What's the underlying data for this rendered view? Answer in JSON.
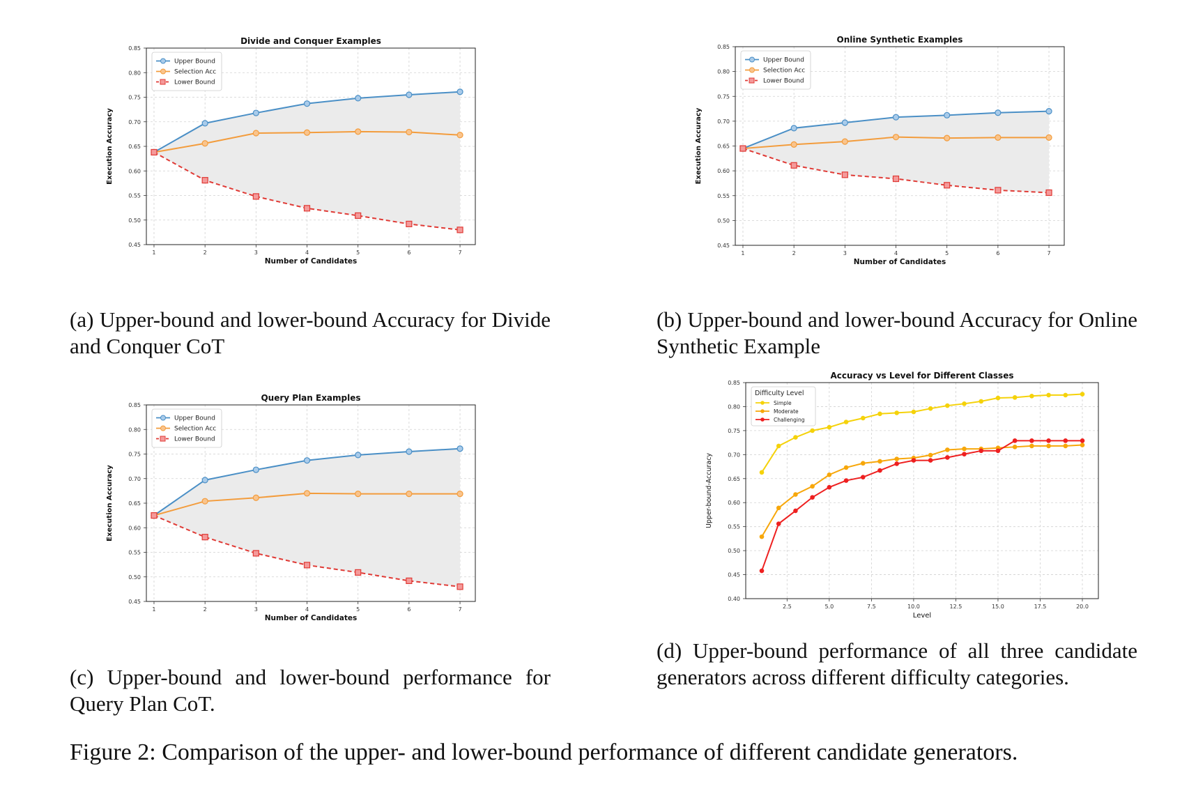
{
  "chart_data": [
    {
      "id": "a",
      "type": "line",
      "title": "Divide and Conquer Examples",
      "xlabel": "Number of Candidates",
      "ylabel": "Execution Accuracy",
      "x": [
        1,
        2,
        3,
        4,
        5,
        6,
        7
      ],
      "xticks": [
        1,
        2,
        3,
        4,
        5,
        6,
        7
      ],
      "xlim": [
        0.85,
        7.3
      ],
      "ylim": [
        0.45,
        0.85
      ],
      "yticks": [
        "0.45",
        "0.50",
        "0.55",
        "0.60",
        "0.65",
        "0.70",
        "0.75",
        "0.80",
        "0.85"
      ],
      "grid": true,
      "shaded_between": [
        "Upper Bound",
        "Lower Bound"
      ],
      "legend_placement": "top-left",
      "series": [
        {
          "name": "Upper Bound",
          "color": "#4a8fc6",
          "marker": "circle",
          "dashed": false,
          "values": [
            0.638,
            0.697,
            0.718,
            0.737,
            0.748,
            0.755,
            0.761
          ]
        },
        {
          "name": "Selection Acc",
          "color": "#f39c3c",
          "marker": "circle",
          "dashed": false,
          "values": [
            0.638,
            0.656,
            0.677,
            0.678,
            0.68,
            0.679,
            0.673
          ]
        },
        {
          "name": "Lower Bound",
          "color": "#e03a35",
          "marker": "square",
          "dashed": true,
          "values": [
            0.638,
            0.581,
            0.548,
            0.524,
            0.509,
            0.492,
            0.48
          ]
        }
      ]
    },
    {
      "id": "b",
      "type": "line",
      "title": "Online Synthetic Examples",
      "xlabel": "Number of Candidates",
      "ylabel": "Execution Accuracy",
      "x": [
        1,
        2,
        3,
        4,
        5,
        6,
        7
      ],
      "xticks": [
        1,
        2,
        3,
        4,
        5,
        6,
        7
      ],
      "xlim": [
        0.85,
        7.3
      ],
      "ylim": [
        0.45,
        0.85
      ],
      "yticks": [
        "0.45",
        "0.50",
        "0.55",
        "0.60",
        "0.65",
        "0.70",
        "0.75",
        "0.80",
        "0.85"
      ],
      "grid": true,
      "shaded_between": [
        "Upper Bound",
        "Lower Bound"
      ],
      "legend_placement": "top-left",
      "series": [
        {
          "name": "Upper Bound",
          "color": "#4a8fc6",
          "marker": "circle",
          "dashed": false,
          "values": [
            0.645,
            0.686,
            0.697,
            0.708,
            0.712,
            0.717,
            0.72
          ]
        },
        {
          "name": "Selection Acc",
          "color": "#f39c3c",
          "marker": "circle",
          "dashed": false,
          "values": [
            0.645,
            0.653,
            0.659,
            0.668,
            0.666,
            0.667,
            0.667
          ]
        },
        {
          "name": "Lower Bound",
          "color": "#e03a35",
          "marker": "square",
          "dashed": true,
          "values": [
            0.645,
            0.611,
            0.592,
            0.584,
            0.571,
            0.561,
            0.556
          ]
        }
      ]
    },
    {
      "id": "c",
      "type": "line",
      "title": "Query Plan Examples",
      "xlabel": "Number of Candidates",
      "ylabel": "Execution Accuracy",
      "x": [
        1,
        2,
        3,
        4,
        5,
        6,
        7
      ],
      "xticks": [
        1,
        2,
        3,
        4,
        5,
        6,
        7
      ],
      "xlim": [
        0.85,
        7.3
      ],
      "ylim": [
        0.45,
        0.85
      ],
      "yticks": [
        "0.45",
        "0.50",
        "0.55",
        "0.60",
        "0.65",
        "0.70",
        "0.75",
        "0.80",
        "0.85"
      ],
      "grid": true,
      "shaded_between": [
        "Upper Bound",
        "Lower Bound"
      ],
      "legend_placement": "top-left",
      "series": [
        {
          "name": "Upper Bound",
          "color": "#4a8fc6",
          "marker": "circle",
          "dashed": false,
          "values": [
            0.625,
            0.697,
            0.718,
            0.737,
            0.748,
            0.755,
            0.761
          ]
        },
        {
          "name": "Selection Acc",
          "color": "#f39c3c",
          "marker": "circle",
          "dashed": false,
          "values": [
            0.625,
            0.654,
            0.661,
            0.67,
            0.669,
            0.669,
            0.669
          ]
        },
        {
          "name": "Lower Bound",
          "color": "#e03a35",
          "marker": "square",
          "dashed": true,
          "values": [
            0.625,
            0.581,
            0.548,
            0.524,
            0.509,
            0.492,
            0.48
          ]
        }
      ]
    },
    {
      "id": "d",
      "type": "line",
      "title": "Accuracy vs Level for Different Classes",
      "xlabel": "Level",
      "ylabel": "Upper-bound-Accuracy",
      "x": [
        1,
        2,
        3,
        4,
        5,
        6,
        7,
        8,
        9,
        10,
        11,
        12,
        13,
        14,
        15,
        16,
        17,
        18,
        19,
        20
      ],
      "xticks": [
        "2.5",
        "5.0",
        "7.5",
        "10.0",
        "12.5",
        "15.0",
        "17.5",
        "20.0"
      ],
      "xlim": [
        0.05,
        20.95
      ],
      "ylim": [
        0.4,
        0.85
      ],
      "yticks": [
        "0.40",
        "0.45",
        "0.50",
        "0.55",
        "0.60",
        "0.65",
        "0.70",
        "0.75",
        "0.80",
        "0.85"
      ],
      "grid": true,
      "legend_title": "Difficulty Level",
      "legend_placement": "top-left",
      "series": [
        {
          "name": "Simple",
          "color": "#f5d20a",
          "marker": "dot",
          "dashed": false,
          "values": [
            0.663,
            0.718,
            0.736,
            0.75,
            0.757,
            0.768,
            0.776,
            0.785,
            0.787,
            0.789,
            0.796,
            0.802,
            0.806,
            0.811,
            0.818,
            0.819,
            0.822,
            0.824,
            0.824,
            0.826
          ]
        },
        {
          "name": "Moderate",
          "color": "#f7a70a",
          "marker": "dot",
          "dashed": false,
          "values": [
            0.529,
            0.589,
            0.617,
            0.634,
            0.658,
            0.673,
            0.682,
            0.686,
            0.691,
            0.693,
            0.699,
            0.71,
            0.712,
            0.712,
            0.714,
            0.716,
            0.718,
            0.718,
            0.718,
            0.72
          ]
        },
        {
          "name": "Challenging",
          "color": "#ee2020",
          "marker": "dot",
          "dashed": false,
          "values": [
            0.458,
            0.556,
            0.583,
            0.611,
            0.632,
            0.646,
            0.653,
            0.667,
            0.681,
            0.688,
            0.688,
            0.694,
            0.701,
            0.708,
            0.708,
            0.729,
            0.729,
            0.729,
            0.729,
            0.729
          ]
        }
      ]
    }
  ],
  "captions": {
    "a": "(a) Upper-bound and lower-bound Accuracy for Divide and Conquer CoT",
    "b": "(b) Upper-bound and lower-bound Accuracy for Online Synthetic Example",
    "c": "(c) Upper-bound and lower-bound performance for Query Plan CoT.",
    "d": "(d) Upper-bound performance of all three candidate generators across different difficulty categories.",
    "figure": "Figure 2: Comparison of the upper- and lower-bound performance of different candidate generators."
  }
}
